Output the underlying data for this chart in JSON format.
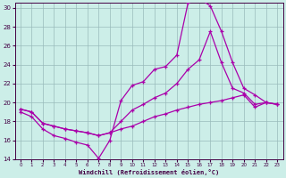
{
  "xlabel": "Windchill (Refroidissement éolien,°C)",
  "background_color": "#cceee8",
  "grid_color": "#99bbbb",
  "line_color": "#aa00aa",
  "spine_color": "#440044",
  "xlim": [
    -0.5,
    23.5
  ],
  "ylim": [
    14,
    30.5
  ],
  "yticks": [
    14,
    16,
    18,
    20,
    22,
    24,
    26,
    28,
    30
  ],
  "xticks": [
    0,
    1,
    2,
    3,
    4,
    5,
    6,
    7,
    8,
    9,
    10,
    11,
    12,
    13,
    14,
    15,
    16,
    17,
    18,
    19,
    20,
    21,
    22,
    23
  ],
  "line1_x": [
    0,
    1,
    2,
    3,
    4,
    5,
    6,
    7,
    8,
    9,
    10,
    11,
    12,
    13,
    14,
    15,
    16,
    17,
    18,
    19,
    20,
    21,
    22,
    23
  ],
  "line1_y": [
    19.0,
    18.5,
    17.2,
    16.5,
    16.2,
    15.8,
    15.5,
    14.1,
    16.0,
    20.2,
    21.8,
    22.2,
    23.5,
    23.8,
    25.0,
    30.5,
    31.0,
    30.2,
    27.5,
    24.2,
    21.5,
    20.8,
    20.0,
    19.8
  ],
  "line2_x": [
    0,
    1,
    2,
    3,
    4,
    5,
    6,
    7,
    8,
    9,
    10,
    11,
    12,
    13,
    14,
    15,
    16,
    17,
    18,
    19,
    20,
    21,
    22,
    23
  ],
  "line2_y": [
    19.3,
    19.0,
    17.8,
    17.5,
    17.2,
    17.0,
    16.8,
    16.5,
    16.8,
    18.0,
    19.2,
    19.8,
    20.5,
    21.0,
    22.0,
    23.5,
    24.5,
    27.5,
    24.2,
    21.5,
    21.0,
    19.8,
    20.0,
    19.8
  ],
  "line3_x": [
    0,
    1,
    2,
    3,
    4,
    5,
    6,
    7,
    8,
    9,
    10,
    11,
    12,
    13,
    14,
    15,
    16,
    17,
    18,
    19,
    20,
    21,
    22,
    23
  ],
  "line3_y": [
    19.3,
    19.0,
    17.8,
    17.5,
    17.2,
    17.0,
    16.8,
    16.5,
    16.8,
    17.2,
    17.5,
    18.0,
    18.5,
    18.8,
    19.2,
    19.5,
    19.8,
    20.0,
    20.2,
    20.5,
    20.8,
    19.5,
    20.0,
    19.8
  ]
}
